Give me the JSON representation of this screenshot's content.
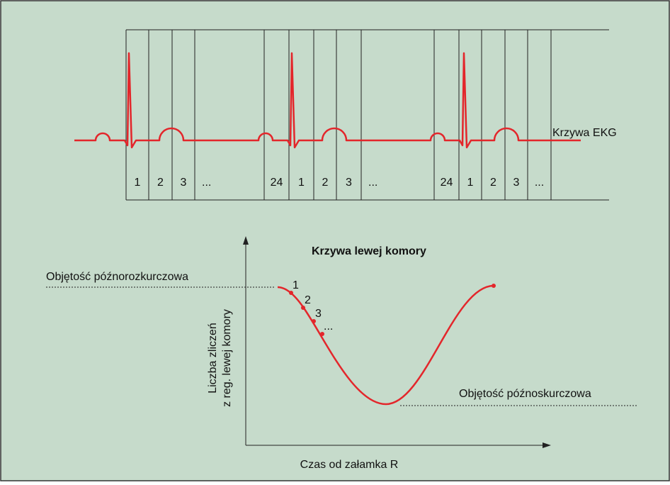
{
  "ekg_label": "Krzywa EKG",
  "frames": [
    "1",
    "2",
    "3",
    "...",
    "24",
    "1",
    "2",
    "3",
    "...",
    "24",
    "1",
    "2",
    "3",
    "..."
  ],
  "lv": {
    "title": "Krzywa lewej komory",
    "edv_label": "Objętość późnorozkurczowa",
    "esv_label": "Objętość późnoskurczowa",
    "y_label": [
      "Liczba zliczeń",
      "z reg. lewej komory"
    ],
    "x_label": "Czas od załamka R",
    "point_labels": [
      "1",
      "2",
      "3",
      "..."
    ]
  }
}
